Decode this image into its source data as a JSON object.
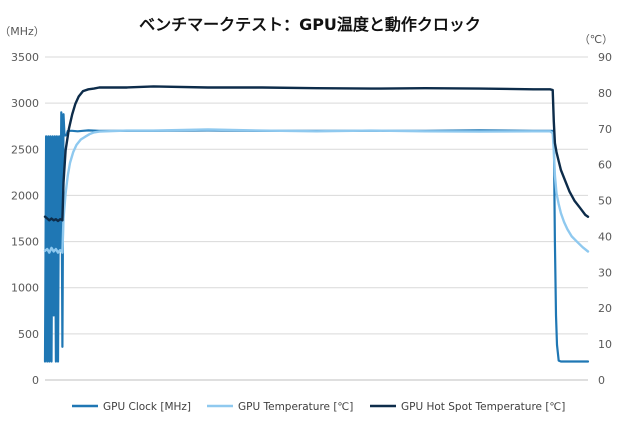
{
  "chart_data": {
    "type": "line",
    "title": "ベンチマークテスト：GPU温度と動作クロック",
    "y_left_unit": "（MHz）",
    "y_right_unit": "（℃）",
    "y_left_range": [
      0,
      3500
    ],
    "y_right_range": [
      0,
      90
    ],
    "y_left_ticks": [
      "0",
      "500",
      "1000",
      "1500",
      "2000",
      "2500",
      "3000",
      "3500"
    ],
    "y_right_ticks": [
      "0",
      "10",
      "20",
      "30",
      "40",
      "50",
      "60",
      "70",
      "80",
      "90"
    ],
    "x_range": [
      0,
      1000
    ],
    "grid": true,
    "legend_position": "bottom",
    "series": [
      {
        "name": "GPU Clock [MHz]",
        "axis": "left",
        "color": "#1f77b4",
        "x": [
          0,
          2,
          4,
          6,
          8,
          10,
          12,
          14,
          16,
          18,
          20,
          22,
          24,
          26,
          28,
          30,
          32,
          34,
          36,
          38,
          40,
          42,
          45,
          50,
          60,
          70,
          80,
          100,
          200,
          300,
          400,
          500,
          600,
          700,
          800,
          900,
          930,
          935,
          937,
          939,
          941,
          943,
          946,
          950,
          1000
        ],
        "values": [
          200,
          2640,
          200,
          2640,
          200,
          2640,
          200,
          2640,
          700,
          2640,
          200,
          2640,
          200,
          2640,
          1400,
          2900,
          360,
          2880,
          2650,
          2650,
          2660,
          2700,
          2700,
          2700,
          2695,
          2700,
          2705,
          2700,
          2700,
          2705,
          2700,
          2700,
          2700,
          2700,
          2705,
          2700,
          2700,
          2700,
          2690,
          1500,
          700,
          380,
          210,
          200,
          200
        ]
      },
      {
        "name": "GPU Temperature [℃]",
        "axis": "right",
        "color": "#8fc9ef",
        "x": [
          0,
          4,
          8,
          12,
          16,
          20,
          24,
          28,
          32,
          34,
          38,
          42,
          46,
          52,
          58,
          66,
          74,
          82,
          90,
          100,
          150,
          200,
          300,
          400,
          500,
          600,
          700,
          800,
          900,
          930,
          935,
          937,
          939,
          942,
          946,
          950,
          956,
          962,
          970,
          980,
          990,
          1000
        ],
        "values": [
          36,
          36.5,
          35.5,
          36.8,
          35.8,
          36.5,
          35.5,
          36.2,
          35.5,
          45,
          52,
          57,
          60.5,
          63.5,
          65.5,
          67,
          67.8,
          68.5,
          69,
          69.2,
          69.5,
          69.5,
          69.8,
          69.5,
          69.3,
          69.5,
          69.3,
          69.2,
          69.3,
          69.3,
          68.8,
          64,
          57,
          52,
          49,
          46.5,
          44,
          42,
          40,
          38.5,
          37,
          35.8
        ]
      },
      {
        "name": "GPU Hot Spot Temperature [℃]",
        "axis": "right",
        "color": "#0d2c4a",
        "x": [
          0,
          4,
          8,
          12,
          16,
          20,
          24,
          28,
          32,
          34,
          38,
          44,
          50,
          56,
          62,
          70,
          80,
          90,
          100,
          150,
          200,
          300,
          400,
          500,
          600,
          700,
          800,
          900,
          930,
          935,
          937,
          939,
          942,
          946,
          950,
          958,
          966,
          975,
          985,
          995,
          1000
        ],
        "values": [
          45.5,
          45,
          44.5,
          45,
          44.5,
          44.8,
          44.3,
          44.8,
          44.5,
          55,
          64,
          70,
          74,
          77,
          79,
          80.5,
          81,
          81.2,
          81.5,
          81.5,
          81.8,
          81.5,
          81.5,
          81.3,
          81.2,
          81.3,
          81.2,
          81,
          81,
          80.8,
          72,
          66,
          63.5,
          61,
          58.5,
          55.5,
          52.5,
          50,
          48,
          46,
          45.5
        ]
      }
    ]
  }
}
